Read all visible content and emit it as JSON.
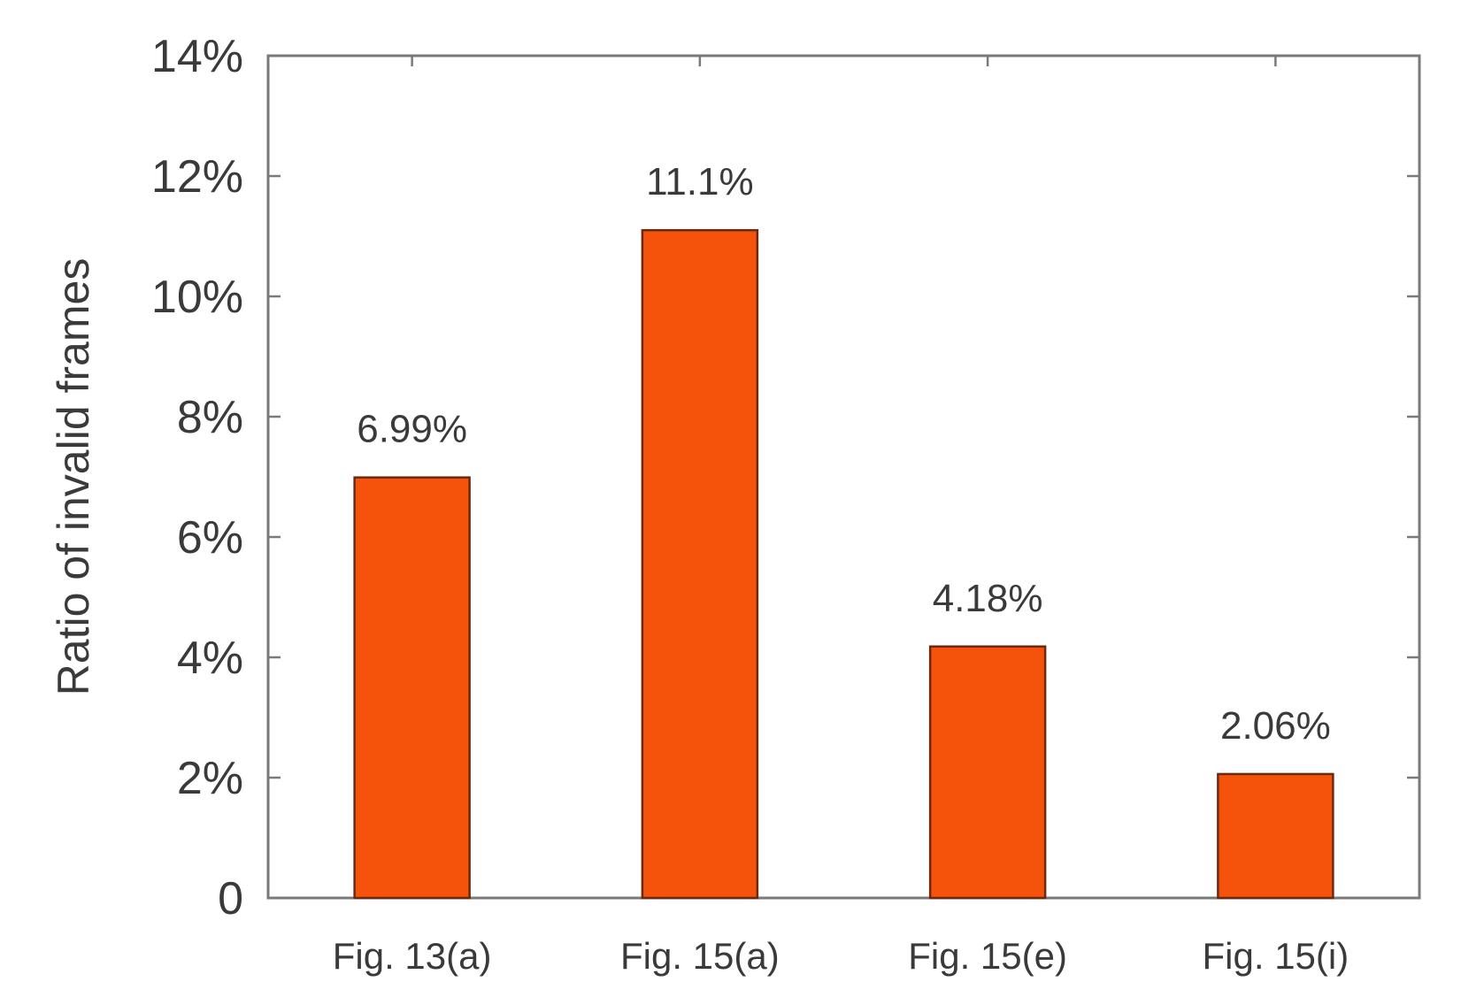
{
  "chart_data": {
    "type": "bar",
    "title": "",
    "xlabel": "",
    "ylabel": "Ratio of invalid frames",
    "categories": [
      "Fig. 13(a)",
      "Fig. 15(a)",
      "Fig. 15(e)",
      "Fig. 15(i)"
    ],
    "values": [
      6.99,
      11.1,
      4.18,
      2.06
    ],
    "data_labels": [
      "6.99%",
      "11.1%",
      "4.18%",
      "2.06%"
    ],
    "ylim": [
      0,
      14
    ],
    "yticks": [
      0,
      2,
      4,
      6,
      8,
      10,
      12,
      14
    ],
    "ytick_labels": [
      "0",
      "2%",
      "4%",
      "6%",
      "8%",
      "10%",
      "12%",
      "14%"
    ],
    "grid": false,
    "legend": "none",
    "colors": {
      "bar_fill": "#f5520c",
      "bar_stroke": "#6b2a10",
      "axis": "#7a7a7a",
      "text": "#3a3a3a"
    }
  }
}
